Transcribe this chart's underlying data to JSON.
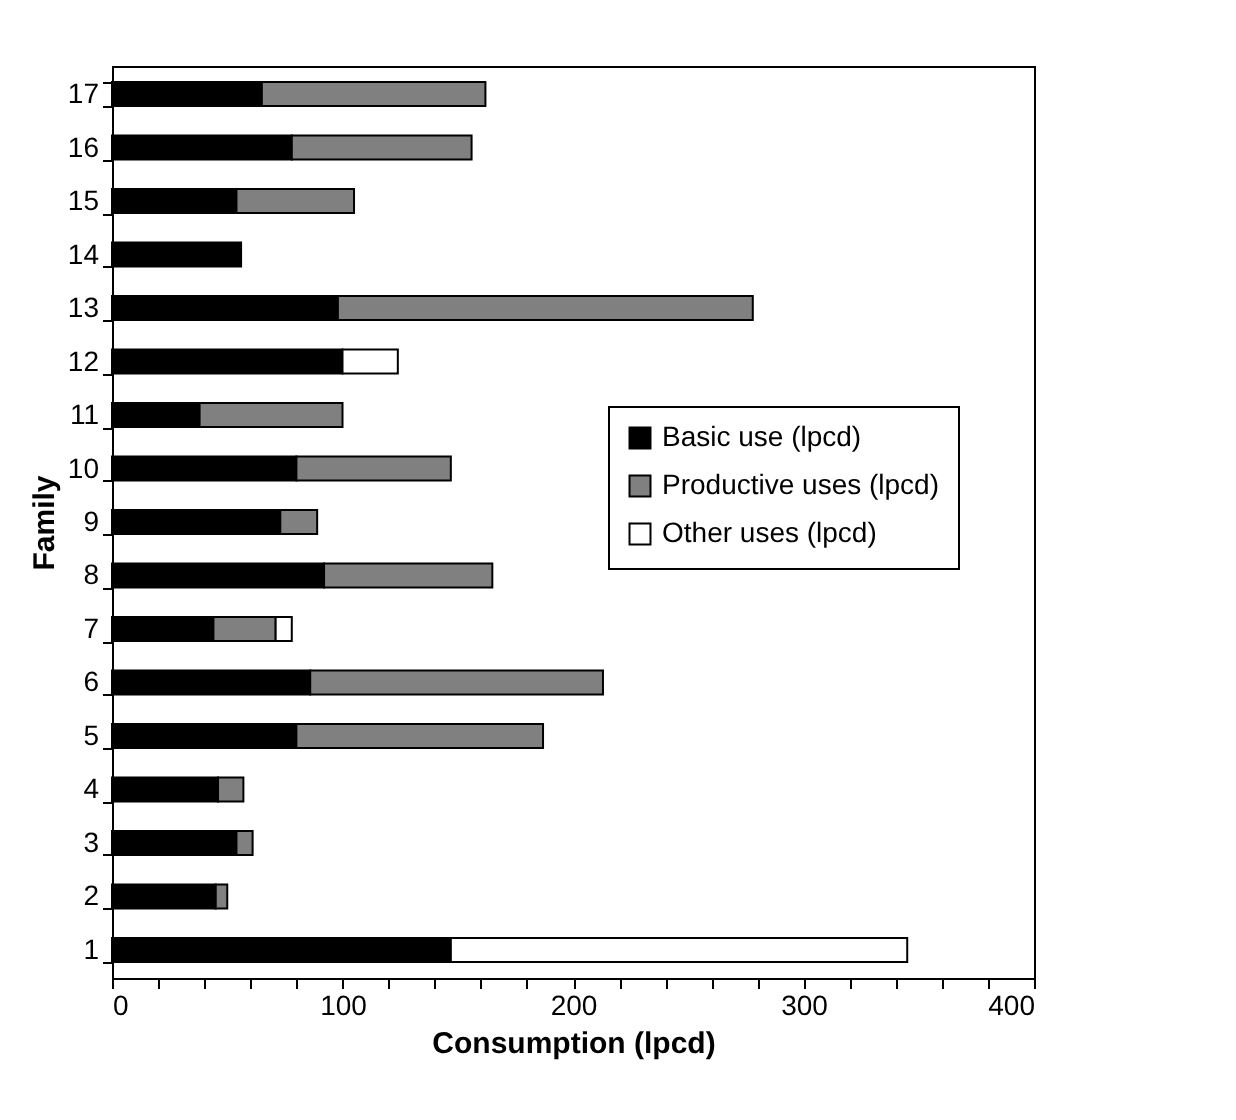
{
  "chart_data": {
    "type": "bar",
    "orientation": "horizontal",
    "stacked": true,
    "xlabel": "Consumption (lpcd)",
    "ylabel": "Family",
    "categories": [
      "17",
      "16",
      "15",
      "14",
      "13",
      "12",
      "11",
      "10",
      "9",
      "8",
      "7",
      "6",
      "5",
      "4",
      "3",
      "2",
      "1"
    ],
    "series": [
      {
        "name": "Basic use (lpcd)",
        "color": "#000000",
        "values": [
          65,
          78,
          54,
          56,
          98,
          100,
          38,
          80,
          73,
          92,
          44,
          86,
          80,
          46,
          54,
          45,
          147
        ]
      },
      {
        "name": "Productive uses (lpcd)",
        "color": "#808080",
        "values": [
          97,
          78,
          51,
          null,
          180,
          null,
          62,
          67,
          16,
          73,
          27,
          127,
          107,
          11,
          7,
          5,
          null
        ]
      },
      {
        "name": "Other uses (lpcd)",
        "color": "#ffffff",
        "values": [
          null,
          null,
          null,
          null,
          null,
          24,
          null,
          null,
          null,
          null,
          7,
          null,
          null,
          null,
          null,
          null,
          198
        ]
      }
    ],
    "xlim": [
      0,
      400
    ],
    "xticks": [
      0,
      {
        "value": 20,
        "label": null
      },
      {
        "value": 40,
        "label": null
      },
      {
        "value": 60,
        "label": null
      },
      {
        "value": 80,
        "label": null
      },
      100,
      {
        "value": 120,
        "label": null
      },
      {
        "value": 140,
        "label": null
      },
      {
        "value": 160,
        "label": null
      },
      {
        "value": 180,
        "label": null
      },
      200,
      {
        "value": 220,
        "label": null
      },
      {
        "value": 240,
        "label": null
      },
      {
        "value": 260,
        "label": null
      },
      {
        "value": 280,
        "label": null
      },
      300,
      {
        "value": 320,
        "label": null
      },
      {
        "value": 340,
        "label": null
      },
      {
        "value": 360,
        "label": null
      },
      {
        "value": 380,
        "label": null
      },
      400
    ],
    "grid": false,
    "legend": "right"
  }
}
